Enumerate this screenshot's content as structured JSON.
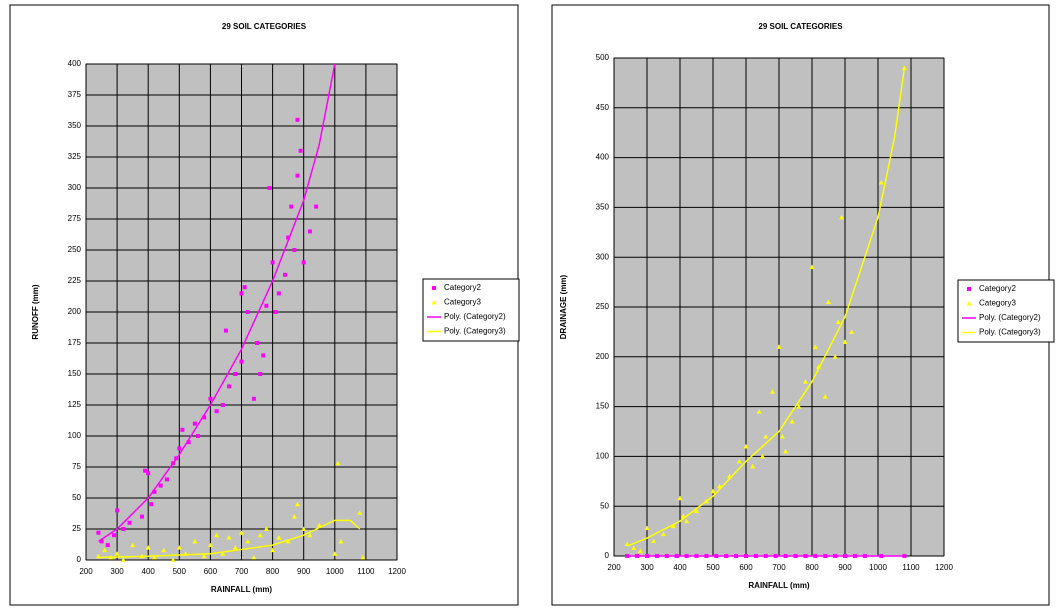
{
  "chart_data": [
    {
      "type": "scatter",
      "title": "29 SOIL CATEGORIES",
      "x_label": "RAINFALL (mm)",
      "y_label": "RUNOFF (mm)",
      "xlim": [
        200,
        1200
      ],
      "xticks": [
        200,
        300,
        400,
        500,
        600,
        700,
        800,
        900,
        1000,
        1100,
        1200
      ],
      "ylim": [
        0,
        400
      ],
      "yticks": [
        0,
        25,
        50,
        75,
        100,
        125,
        150,
        175,
        200,
        225,
        250,
        275,
        300,
        325,
        350,
        375,
        400
      ],
      "grid": true,
      "background": "#c0c0c0",
      "series": [
        {
          "name": "Category2",
          "color": "#ff00ff",
          "style": "square",
          "x": [
            240,
            250,
            270,
            290,
            300,
            320,
            340,
            380,
            390,
            400,
            410,
            420,
            440,
            460,
            480,
            490,
            500,
            510,
            530,
            550,
            560,
            580,
            600,
            620,
            640,
            650,
            660,
            680,
            700,
            700,
            710,
            720,
            740,
            750,
            760,
            770,
            780,
            790,
            800,
            810,
            820,
            840,
            850,
            860,
            870,
            880,
            880,
            890,
            900,
            920,
            940
          ],
          "values": [
            22,
            15,
            12,
            20,
            40,
            25,
            30,
            35,
            72,
            70,
            45,
            55,
            60,
            65,
            78,
            82,
            90,
            105,
            95,
            110,
            100,
            115,
            130,
            120,
            125,
            185,
            140,
            150,
            160,
            215,
            220,
            200,
            130,
            175,
            150,
            165,
            205,
            300,
            240,
            200,
            215,
            230,
            260,
            285,
            250,
            310,
            355,
            330,
            240,
            265,
            285
          ]
        },
        {
          "name": "Category3",
          "color": "#ffff00",
          "style": "triangle",
          "x": [
            240,
            260,
            280,
            300,
            320,
            350,
            380,
            400,
            420,
            450,
            480,
            500,
            520,
            550,
            580,
            600,
            620,
            640,
            660,
            680,
            700,
            720,
            740,
            760,
            780,
            800,
            820,
            850,
            870,
            880,
            900,
            920,
            950,
            1000,
            1010,
            1020,
            1080,
            1090
          ],
          "values": [
            3,
            8,
            2,
            5,
            0,
            12,
            3,
            10,
            2,
            8,
            0,
            10,
            5,
            15,
            3,
            12,
            20,
            5,
            18,
            10,
            22,
            15,
            2,
            20,
            25,
            8,
            18,
            15,
            35,
            45,
            25,
            20,
            28,
            5,
            78,
            15,
            38,
            2
          ]
        },
        {
          "name": "Poly. (Category2)",
          "color": "#ff00ff",
          "style": "line",
          "x": [
            240,
            300,
            400,
            500,
            600,
            700,
            800,
            900,
            950,
            1000
          ],
          "values": [
            15,
            25,
            50,
            85,
            125,
            170,
            225,
            290,
            335,
            400
          ]
        },
        {
          "name": "Poly. (Category3)",
          "color": "#ffff00",
          "style": "line",
          "x": [
            240,
            400,
            600,
            800,
            900,
            950,
            1000,
            1050,
            1080
          ],
          "values": [
            2,
            3,
            5,
            12,
            20,
            26,
            32,
            32,
            25
          ]
        }
      ]
    },
    {
      "type": "scatter",
      "title": "29 SOIL CATEGORIES",
      "x_label": "RAINFALL (mm)",
      "y_label": "DRAINAGE (mm)",
      "xlim": [
        200,
        1200
      ],
      "xticks": [
        200,
        300,
        400,
        500,
        600,
        700,
        800,
        900,
        1000,
        1100,
        1200
      ],
      "ylim": [
        0,
        500
      ],
      "yticks": [
        0,
        50,
        100,
        150,
        200,
        250,
        300,
        350,
        400,
        450,
        500
      ],
      "grid": true,
      "background": "#c0c0c0",
      "series": [
        {
          "name": "Category2",
          "color": "#ff00ff",
          "style": "square",
          "x": [
            240,
            270,
            300,
            330,
            360,
            390,
            420,
            450,
            480,
            510,
            540,
            570,
            600,
            630,
            660,
            690,
            720,
            750,
            780,
            810,
            840,
            870,
            900,
            930,
            960,
            1010,
            1080
          ],
          "values": [
            0,
            0,
            0,
            0,
            0,
            0,
            0,
            0,
            0,
            0,
            0,
            0,
            0,
            0,
            0,
            0,
            0,
            0,
            0,
            0,
            0,
            0,
            0,
            0,
            0,
            0,
            0
          ]
        },
        {
          "name": "Category3",
          "color": "#ffff00",
          "style": "triangle",
          "x": [
            240,
            260,
            280,
            300,
            320,
            350,
            380,
            400,
            410,
            420,
            450,
            480,
            500,
            520,
            550,
            580,
            600,
            620,
            640,
            650,
            660,
            680,
            700,
            710,
            720,
            740,
            760,
            780,
            800,
            810,
            820,
            840,
            850,
            870,
            880,
            890,
            900,
            920,
            1010,
            1080
          ],
          "values": [
            12,
            8,
            5,
            28,
            15,
            22,
            30,
            58,
            40,
            35,
            45,
            55,
            65,
            70,
            80,
            95,
            110,
            90,
            145,
            100,
            120,
            165,
            210,
            120,
            105,
            135,
            150,
            175,
            290,
            210,
            190,
            160,
            255,
            200,
            235,
            340,
            215,
            225,
            375,
            490
          ]
        },
        {
          "name": "Poly. (Category2)",
          "color": "#ff00ff",
          "style": "line",
          "x": [
            240,
            400,
            600,
            800,
            1000,
            1080
          ],
          "values": [
            0,
            0,
            0,
            0,
            0,
            0
          ]
        },
        {
          "name": "Poly. (Category3)",
          "color": "#ffff00",
          "style": "line",
          "x": [
            240,
            300,
            400,
            500,
            600,
            700,
            800,
            900,
            1000,
            1050,
            1080
          ],
          "values": [
            10,
            18,
            35,
            60,
            95,
            125,
            175,
            240,
            340,
            420,
            490
          ]
        }
      ]
    }
  ]
}
